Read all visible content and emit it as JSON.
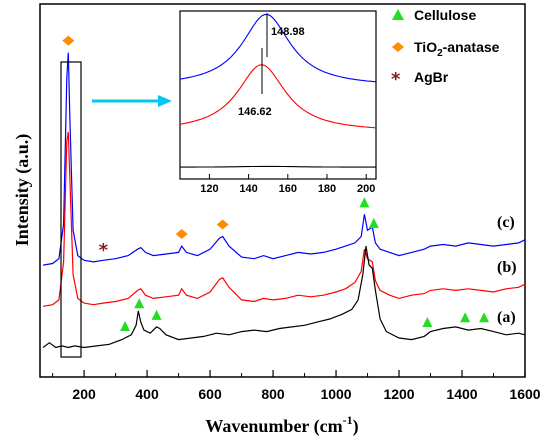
{
  "chart_data": {
    "type": "line",
    "xlabel": "Wavenumber (cm",
    "xlabel_sup": "-1",
    "xlabel_end": ")",
    "ylabel": "Intensity (a.u.)",
    "xlim": [
      60,
      1600
    ],
    "xticks": [
      "200",
      "400",
      "600",
      "800",
      "1000",
      "1200",
      "1400",
      "1600"
    ],
    "series": [
      {
        "name": "(c)",
        "color": "#0000ff",
        "x": [
          70,
          100,
          120,
          135,
          145,
          150,
          155,
          165,
          180,
          200,
          230,
          260,
          300,
          340,
          370,
          380,
          395,
          420,
          460,
          500,
          510,
          525,
          560,
          600,
          630,
          640,
          660,
          700,
          740,
          770,
          800,
          840,
          880,
          920,
          960,
          1000,
          1030,
          1060,
          1080,
          1090,
          1100,
          1115,
          1125,
          1140,
          1170,
          1200,
          1240,
          1280,
          1300,
          1340,
          1380,
          1420,
          1460,
          1500,
          1540,
          1580,
          1600
        ],
        "y": [
          2.9,
          2.95,
          3.1,
          4.2,
          8.8,
          9.6,
          7.5,
          4.0,
          3.2,
          3.05,
          3.0,
          3.05,
          3.1,
          3.2,
          3.4,
          3.45,
          3.3,
          3.2,
          3.25,
          3.3,
          3.5,
          3.3,
          3.2,
          3.4,
          3.75,
          3.8,
          3.5,
          3.15,
          3.1,
          3.2,
          3.1,
          3.2,
          3.3,
          3.25,
          3.3,
          3.4,
          3.5,
          3.6,
          3.8,
          4.5,
          4.0,
          4.1,
          3.6,
          3.4,
          3.3,
          3.2,
          3.3,
          3.4,
          3.5,
          3.55,
          3.5,
          3.6,
          3.55,
          3.5,
          3.55,
          3.6,
          3.7
        ]
      },
      {
        "name": "(b)",
        "color": "#ff0000",
        "x": [
          70,
          100,
          120,
          135,
          145,
          150,
          155,
          165,
          180,
          200,
          230,
          260,
          300,
          340,
          370,
          380,
          395,
          420,
          460,
          500,
          510,
          525,
          560,
          600,
          630,
          640,
          660,
          700,
          740,
          770,
          800,
          840,
          880,
          920,
          960,
          1000,
          1030,
          1060,
          1080,
          1090,
          1100,
          1115,
          1125,
          1140,
          1170,
          1200,
          1240,
          1280,
          1300,
          1340,
          1380,
          1420,
          1460,
          1500,
          1540,
          1580,
          1600
        ],
        "y": [
          1.6,
          1.65,
          1.8,
          3.0,
          6.8,
          7.1,
          5.6,
          2.6,
          1.85,
          1.7,
          1.65,
          1.7,
          1.75,
          1.85,
          2.1,
          2.15,
          1.95,
          1.85,
          1.9,
          1.95,
          2.15,
          1.95,
          1.85,
          2.05,
          2.45,
          2.5,
          2.2,
          1.8,
          1.75,
          1.85,
          1.8,
          1.85,
          1.95,
          1.9,
          1.95,
          2.05,
          2.15,
          2.35,
          2.7,
          3.4,
          3.1,
          3.0,
          2.4,
          2.1,
          1.95,
          1.85,
          1.95,
          2.0,
          2.1,
          2.15,
          2.1,
          2.15,
          2.1,
          2.05,
          2.15,
          2.2,
          2.3
        ]
      },
      {
        "name": "(a)",
        "color": "#000000",
        "x": [
          70,
          90,
          110,
          130,
          150,
          170,
          200,
          240,
          280,
          320,
          350,
          365,
          372,
          380,
          390,
          410,
          430,
          440,
          460,
          500,
          540,
          580,
          620,
          660,
          700,
          740,
          780,
          820,
          860,
          900,
          940,
          980,
          1020,
          1050,
          1070,
          1085,
          1095,
          1105,
          1115,
          1125,
          1140,
          1160,
          1200,
          1240,
          1280,
          1300,
          1340,
          1380,
          1420,
          1460,
          1500,
          1540,
          1580,
          1600
        ],
        "y": [
          0.3,
          0.45,
          0.3,
          0.35,
          0.3,
          0.35,
          0.3,
          0.35,
          0.4,
          0.55,
          0.7,
          1.0,
          1.45,
          1.1,
          0.85,
          0.75,
          0.95,
          0.9,
          0.7,
          0.55,
          0.6,
          0.65,
          0.75,
          0.7,
          0.8,
          0.85,
          0.8,
          0.9,
          0.95,
          1.0,
          1.1,
          1.2,
          1.35,
          1.5,
          1.8,
          2.6,
          3.5,
          2.9,
          2.8,
          2.1,
          1.2,
          0.8,
          0.6,
          0.55,
          0.65,
          0.8,
          0.9,
          0.95,
          0.85,
          0.9,
          0.8,
          0.7,
          0.75,
          0.7
        ]
      }
    ],
    "curve_labels": [
      "(c)",
      "(b)",
      "(a)"
    ],
    "legend": [
      {
        "label": "Cellulose",
        "marker": "triangle",
        "color": "#22dd22"
      },
      {
        "label": "TiO",
        "sub": "2",
        "label_end": "-anatase",
        "marker": "diamond",
        "color": "#ff8c00"
      },
      {
        "label": "AgBr",
        "marker": "star",
        "color": "#8b1a1a"
      }
    ],
    "markers": [
      {
        "type": "triangle",
        "x": 330,
        "curve": "(a)"
      },
      {
        "type": "triangle",
        "x": 375,
        "curve": "(a)"
      },
      {
        "type": "triangle",
        "x": 430,
        "curve": "(a)"
      },
      {
        "type": "triangle",
        "x": 1290,
        "curve": "(a)"
      },
      {
        "type": "triangle",
        "x": 1410,
        "curve": "(a)"
      },
      {
        "type": "triangle",
        "x": 1470,
        "curve": "(a)"
      },
      {
        "type": "triangle",
        "x": 1090,
        "curve": "(c)"
      },
      {
        "type": "triangle",
        "x": 1120,
        "curve": "(c)"
      },
      {
        "type": "diamond",
        "x": 150,
        "curve": "(c)"
      },
      {
        "type": "diamond",
        "x": 510,
        "curve": "(c)"
      },
      {
        "type": "diamond",
        "x": 640,
        "curve": "(c)"
      },
      {
        "type": "star",
        "x": 262,
        "curve": "(c)"
      }
    ],
    "inset": {
      "xlim": [
        105,
        205
      ],
      "xticks": [
        "120",
        "140",
        "160",
        "180",
        "200"
      ],
      "peak_labels": [
        "148.98",
        "146.62"
      ],
      "series": [
        {
          "name": "blue",
          "color": "#0000ff",
          "center": 148.98,
          "base": 0.55,
          "amp": 0.43,
          "hwhm": 15
        },
        {
          "name": "red",
          "color": "#ff0000",
          "center": 146.62,
          "base": 0.28,
          "amp": 0.4,
          "hwhm": 15
        },
        {
          "name": "black",
          "color": "#000000",
          "center": 150,
          "base": 0.07,
          "amp": 0.005,
          "hwhm": 20
        }
      ]
    }
  }
}
